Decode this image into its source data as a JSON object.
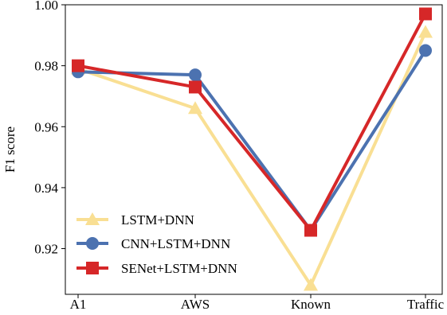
{
  "chart_data": {
    "type": "line",
    "categories": [
      "A1",
      "AWS",
      "Known",
      "Traffic"
    ],
    "ylabel": "F1 score",
    "ylim": [
      0.905,
      1.0
    ],
    "yticks": [
      "0.92",
      "0.94",
      "0.96",
      "0.98",
      "1.00"
    ],
    "ytick_values": [
      0.92,
      0.94,
      0.96,
      0.98,
      1.0
    ],
    "legend_position": "lower-left",
    "grid": false,
    "series": [
      {
        "name": "LSTM+DNN",
        "values": [
          0.979,
          0.966,
          0.908,
          0.991
        ],
        "color": "#f9df93",
        "marker": "triangle"
      },
      {
        "name": "CNN+LSTM+DNN",
        "values": [
          0.978,
          0.977,
          0.926,
          0.985
        ],
        "color": "#4c72b0",
        "marker": "circle"
      },
      {
        "name": "SENet+LSTM+DNN",
        "values": [
          0.98,
          0.973,
          0.926,
          0.997
        ],
        "color": "#d62728",
        "marker": "square"
      }
    ]
  }
}
